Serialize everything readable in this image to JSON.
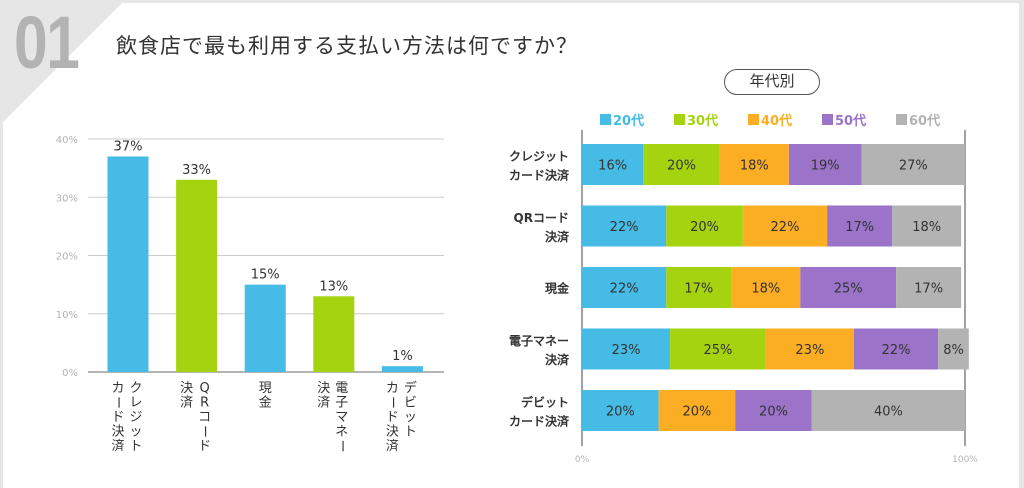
{
  "header": {
    "number": "01",
    "title": "飲食店で最も利用する支払い方法は何ですか？"
  },
  "colors": {
    "blue": "#45bbe5",
    "green": "#a5d30f",
    "orange": "#fbad23",
    "purple": "#9b74c9",
    "gray": "#b3b3b3",
    "text": "#333333",
    "axis_label": "#b3b3b3"
  },
  "chart_data": [
    {
      "type": "bar",
      "title": "",
      "xlabel": "",
      "ylabel": "",
      "ylim": [
        0,
        40
      ],
      "yticks": [
        "0%",
        "10%",
        "20%",
        "30%",
        "40%"
      ],
      "ytick_values": [
        0,
        10,
        20,
        30,
        40
      ],
      "grid": true,
      "categories": [
        "クレジット\nカード決済",
        "QRコード\n決済",
        "現金",
        "電子マネー\n決済",
        "デビット\nカード決済"
      ],
      "category_columns": [
        [
          "クレジット",
          "カード決済"
        ],
        [
          "QRコード",
          "決済"
        ],
        [
          "現金"
        ],
        [
          "電子マネー",
          "決済"
        ],
        [
          "デビット",
          "カード決済"
        ]
      ],
      "values": [
        37,
        33,
        15,
        13,
        1
      ],
      "value_labels": [
        "37%",
        "33%",
        "15%",
        "13%",
        "1%"
      ],
      "bar_colors": [
        "#45bbe5",
        "#a5d30f",
        "#45bbe5",
        "#a5d30f",
        "#45bbe5"
      ]
    },
    {
      "type": "bar",
      "orientation": "horizontal-stacked-100",
      "title": "年代別",
      "xlim": [
        0,
        100
      ],
      "xticks": [
        "0%",
        "100%"
      ],
      "legend_position": "top",
      "legend": [
        "20代",
        "30代",
        "40代",
        "50代",
        "60代"
      ],
      "series_colors": [
        "#45bbe5",
        "#a5d30f",
        "#fbad23",
        "#9b74c9",
        "#b3b3b3"
      ],
      "categories": [
        [
          "クレジット",
          "カード決済"
        ],
        [
          "QRコード",
          "決済"
        ],
        [
          "現金"
        ],
        [
          "電子マネー",
          "決済"
        ],
        [
          "デビット",
          "カード決済"
        ]
      ],
      "series": [
        {
          "name": "20代",
          "values": [
            16,
            22,
            22,
            23,
            20
          ]
        },
        {
          "name": "30代",
          "values": [
            20,
            20,
            17,
            25,
            0
          ]
        },
        {
          "name": "40代",
          "values": [
            18,
            22,
            18,
            23,
            20
          ]
        },
        {
          "name": "50代",
          "values": [
            19,
            17,
            25,
            22,
            20
          ]
        },
        {
          "name": "60代",
          "values": [
            27,
            18,
            17,
            8,
            40
          ]
        }
      ]
    }
  ]
}
